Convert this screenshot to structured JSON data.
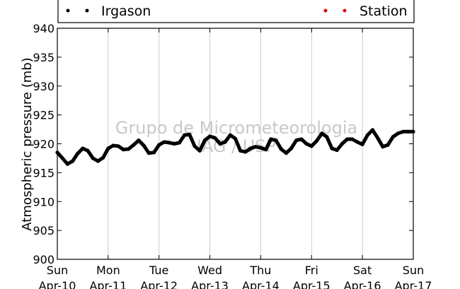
{
  "chart_data": {
    "type": "scatter",
    "ylabel": "Atmospheric pressure (mb)",
    "ylim": [
      900,
      940
    ],
    "yticks": [
      "900",
      "905",
      "910",
      "915",
      "920",
      "925",
      "930",
      "935",
      "940"
    ],
    "xticks": [
      {
        "day": "Sun",
        "date": "Apr-10"
      },
      {
        "day": "Mon",
        "date": "Apr-11"
      },
      {
        "day": "Tue",
        "date": "Apr-12"
      },
      {
        "day": "Wed",
        "date": "Apr-13"
      },
      {
        "day": "Thu",
        "date": "Apr-14"
      },
      {
        "day": "Fri",
        "date": "Apr-15"
      },
      {
        "day": "Sat",
        "date": "Apr-16"
      },
      {
        "day": "Sun",
        "date": "Apr-17"
      }
    ],
    "grid": "vertical",
    "legend_placement": "top",
    "watermark": [
      "Grupo de Micrometeorologia",
      "IAG / USP"
    ],
    "series": [
      {
        "name": "Irgason",
        "color": "#000000",
        "x_days": [
          0.0,
          0.1,
          0.2,
          0.3,
          0.4,
          0.5,
          0.6,
          0.7,
          0.8,
          0.9,
          1.0,
          1.1,
          1.2,
          1.3,
          1.4,
          1.5,
          1.6,
          1.7,
          1.8,
          1.9,
          2.0,
          2.1,
          2.2,
          2.3,
          2.4,
          2.5,
          2.6,
          2.7,
          2.8,
          2.9,
          3.0,
          3.1,
          3.2,
          3.3,
          3.4,
          3.5,
          3.6,
          3.7,
          3.8,
          3.9,
          4.0,
          4.1,
          4.2,
          4.3,
          4.4,
          4.5,
          4.6,
          4.7,
          4.8,
          4.9,
          5.0,
          5.1,
          5.2,
          5.3,
          5.4,
          5.5,
          5.6,
          5.7,
          5.8,
          5.9,
          6.0,
          6.1,
          6.2,
          6.3,
          6.4,
          6.5,
          6.6,
          6.7,
          6.8,
          6.9,
          7.0
        ],
        "y": [
          918.5,
          917.5,
          916.5,
          917.0,
          918.3,
          919.2,
          918.8,
          917.5,
          917.0,
          917.6,
          919.2,
          919.7,
          919.6,
          919.0,
          919.1,
          919.8,
          920.6,
          919.7,
          918.4,
          918.5,
          919.8,
          920.3,
          920.2,
          920.0,
          920.2,
          921.5,
          921.6,
          919.6,
          918.8,
          920.6,
          921.3,
          921.0,
          920.0,
          920.3,
          921.5,
          920.9,
          918.8,
          918.6,
          919.2,
          919.5,
          919.3,
          919.0,
          920.8,
          920.6,
          919.1,
          918.4,
          919.2,
          920.6,
          920.8,
          920.0,
          919.6,
          920.5,
          921.8,
          921.2,
          919.2,
          918.9,
          920.0,
          920.8,
          920.8,
          920.3,
          919.9,
          921.5,
          922.4,
          921.0,
          919.5,
          919.8,
          921.2,
          921.8,
          922.1,
          922.1,
          922.1
        ]
      },
      {
        "name": "Station",
        "color": "#e00000",
        "x_days": [],
        "y": []
      }
    ]
  }
}
